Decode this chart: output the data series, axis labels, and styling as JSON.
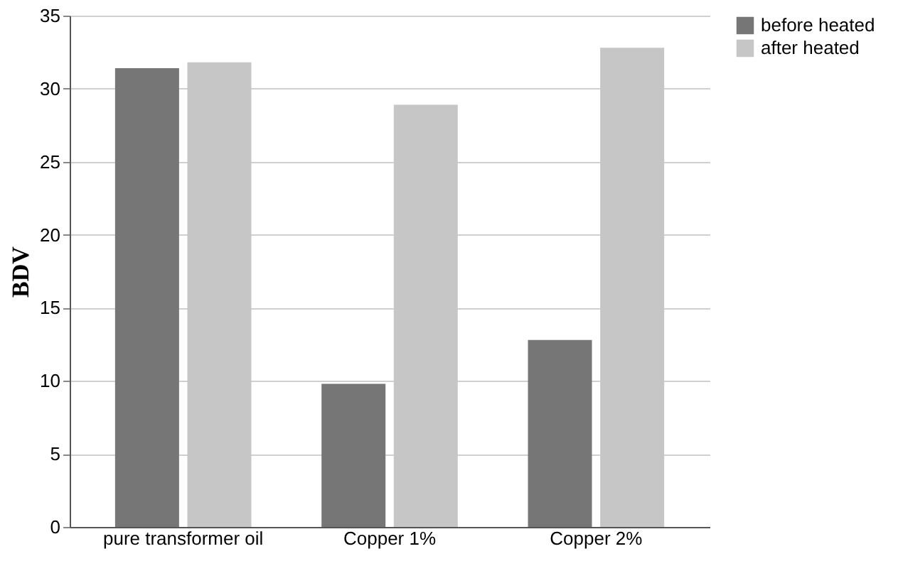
{
  "chart_data": {
    "type": "bar",
    "ylabel": "BDV",
    "categories": [
      "pure transformer oil",
      "Copper 1%",
      "Copper 2%"
    ],
    "series": [
      {
        "name": "before heated",
        "color": "#767676",
        "values": [
          31.4,
          9.8,
          12.8
        ]
      },
      {
        "name": "after heated",
        "color": "#c6c6c6",
        "values": [
          31.8,
          28.9,
          32.8
        ]
      }
    ],
    "ylim": [
      0,
      35
    ],
    "yticks": [
      0,
      5,
      10,
      15,
      20,
      25,
      30,
      35
    ],
    "grid": "y",
    "legend": "right"
  }
}
